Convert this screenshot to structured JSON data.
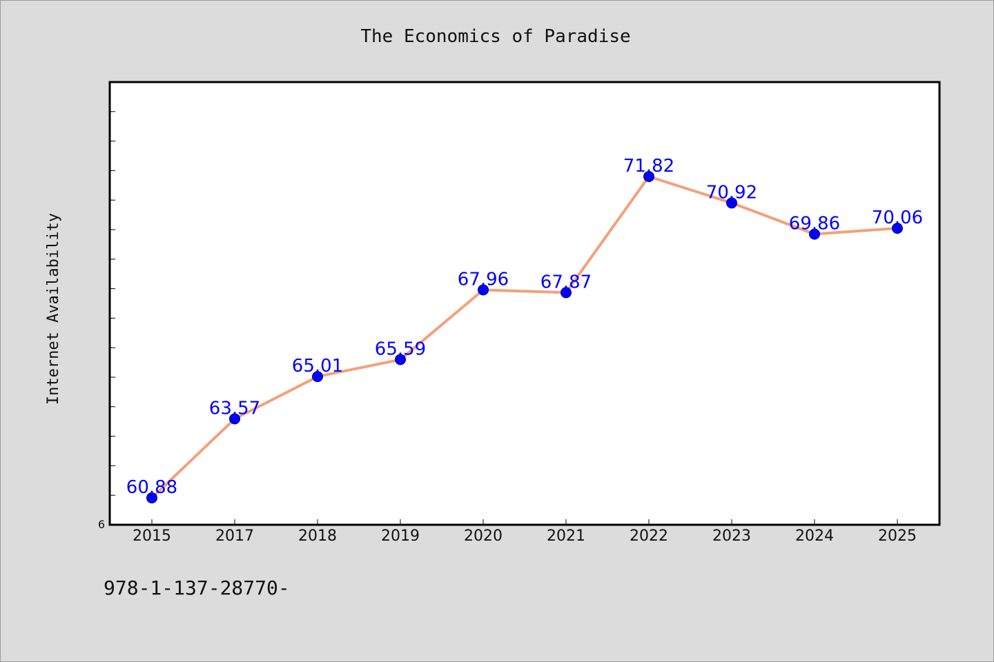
{
  "chart_data": {
    "type": "line",
    "title": "The Economics of Paradise",
    "ylabel": "Internet Availability",
    "xlabel": "",
    "categories": [
      "2015",
      "2017",
      "2018",
      "2019",
      "2020",
      "2021",
      "2022",
      "2023",
      "2024",
      "2025"
    ],
    "series": [
      {
        "values": [
          60.88,
          63.57,
          65.01,
          65.59,
          67.96,
          67.87,
          71.82,
          70.92,
          69.86,
          70.06
        ],
        "labels": [
          "60.88",
          "63.57",
          "65.01",
          "65.59",
          "67.96",
          "67.87",
          "71.82",
          "70.92",
          "69.86",
          "70.06"
        ],
        "line_color": "#f4a07a",
        "marker_color": "#0000ff"
      }
    ],
    "y_tick_label": "6",
    "ylim": [
      60,
      75
    ],
    "grid": false,
    "legend": "none"
  },
  "footer": {
    "text": "978-1-137-28770-"
  }
}
